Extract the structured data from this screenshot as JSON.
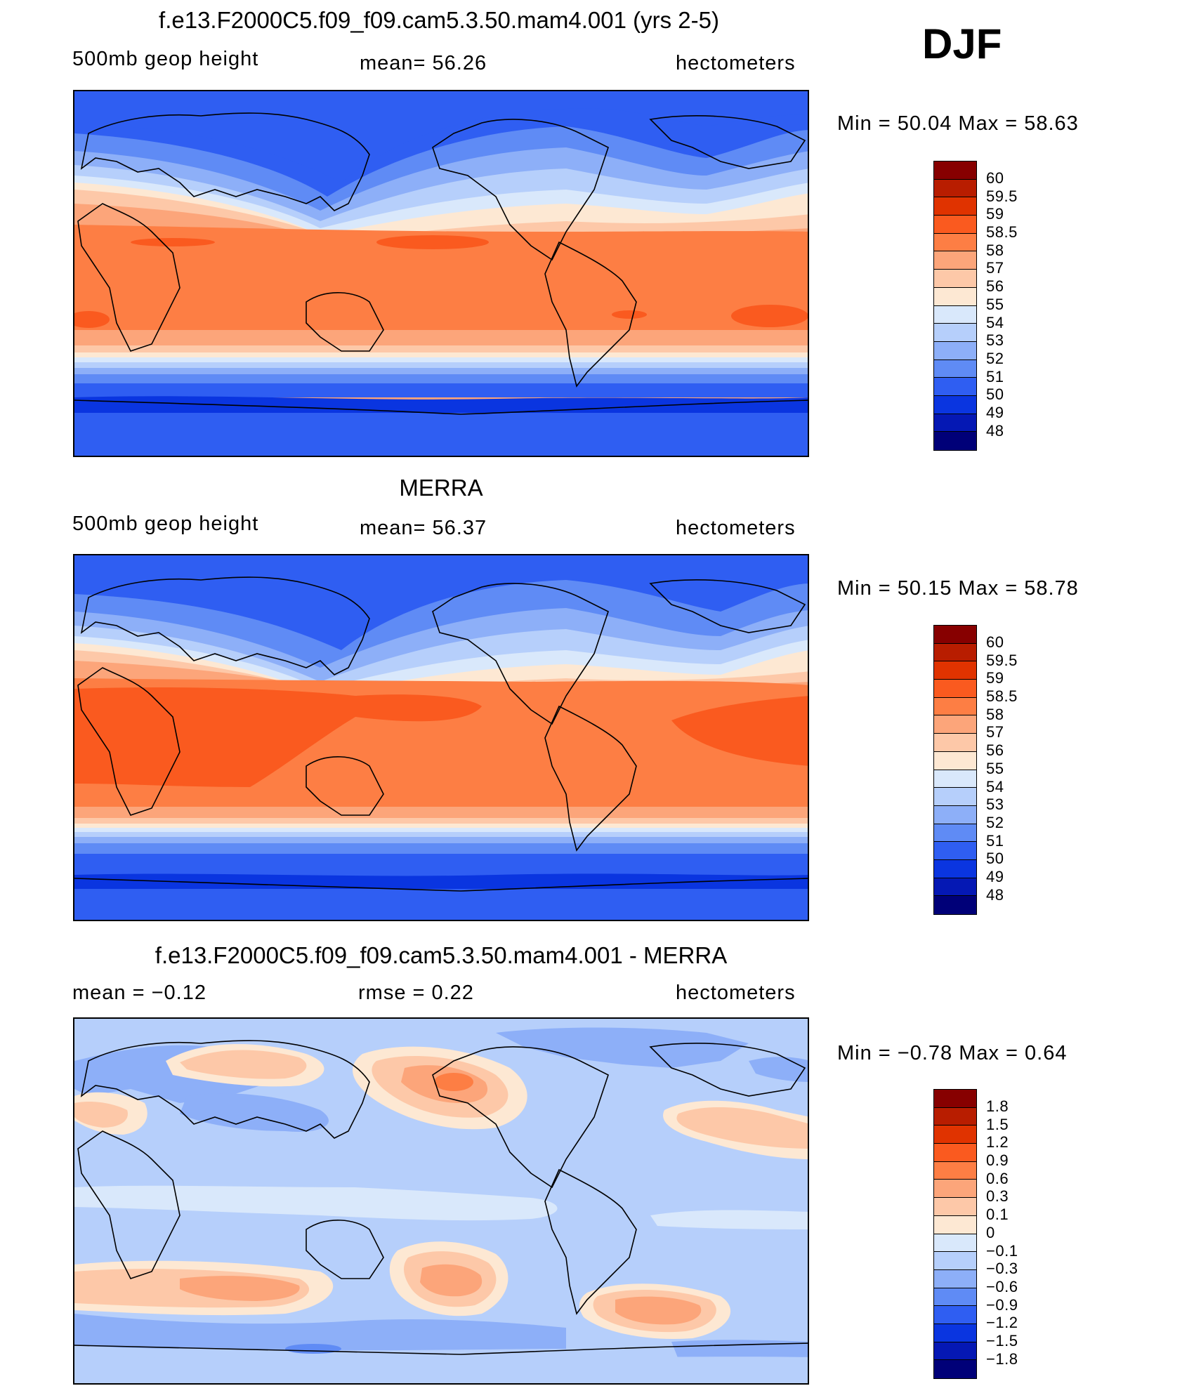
{
  "season": "DJF",
  "panels": [
    {
      "id": "model",
      "title": "f.e13.F2000C5.f09_f09.cam5.3.50.mam4.001 (yrs 2-5)",
      "left_label": "500mb geop height",
      "mid_label": "mean=   56.26",
      "right_label": "hectometers",
      "minmax": "Min =   50.04  Max =   58.63",
      "levels": [
        "60",
        "59.5",
        "59",
        "58.5",
        "58",
        "57",
        "56",
        "55",
        "54",
        "53",
        "52",
        "51",
        "50",
        "49",
        "48"
      ],
      "colors": [
        "#870000",
        "#b81d00",
        "#e03300",
        "#fa5a1f",
        "#fd7e44",
        "#fca57a",
        "#fdc8a8",
        "#fde8d3",
        "#d9e8fb",
        "#b6cffb",
        "#8daff8",
        "#5f8bf5",
        "#2f5ef2",
        "#0a35e0",
        "#0518b4",
        "#000078"
      ]
    },
    {
      "id": "obs",
      "title": "MERRA",
      "left_label": "500mb geop height",
      "mid_label": "mean=   56.37",
      "right_label": "hectometers",
      "minmax": "Min =   50.15  Max =   58.78",
      "levels": [
        "60",
        "59.5",
        "59",
        "58.5",
        "58",
        "57",
        "56",
        "55",
        "54",
        "53",
        "52",
        "51",
        "50",
        "49",
        "48"
      ],
      "colors": [
        "#870000",
        "#b81d00",
        "#e03300",
        "#fa5a1f",
        "#fd7e44",
        "#fca57a",
        "#fdc8a8",
        "#fde8d3",
        "#d9e8fb",
        "#b6cffb",
        "#8daff8",
        "#5f8bf5",
        "#2f5ef2",
        "#0a35e0",
        "#0518b4",
        "#000078"
      ]
    },
    {
      "id": "diff",
      "title": "f.e13.F2000C5.f09_f09.cam5.3.50.mam4.001 - MERRA",
      "left_label": "mean =   −0.12",
      "mid_label": "rmse =     0.22",
      "right_label": "hectometers",
      "minmax": "Min =   −0.78  Max =     0.64",
      "levels": [
        "1.8",
        "1.5",
        "1.2",
        "0.9",
        "0.6",
        "0.3",
        "0.1",
        "0",
        "−0.1",
        "−0.3",
        "−0.6",
        "−0.9",
        "−1.2",
        "−1.5",
        "−1.8"
      ],
      "colors": [
        "#870000",
        "#b81d00",
        "#e03300",
        "#fa5a1f",
        "#fd7e44",
        "#fca57a",
        "#fdc8a8",
        "#fde8d3",
        "#d9e8fb",
        "#b6cffb",
        "#8daff8",
        "#5f8bf5",
        "#2f5ef2",
        "#0a35e0",
        "#0518b4",
        "#000078"
      ]
    }
  ]
}
